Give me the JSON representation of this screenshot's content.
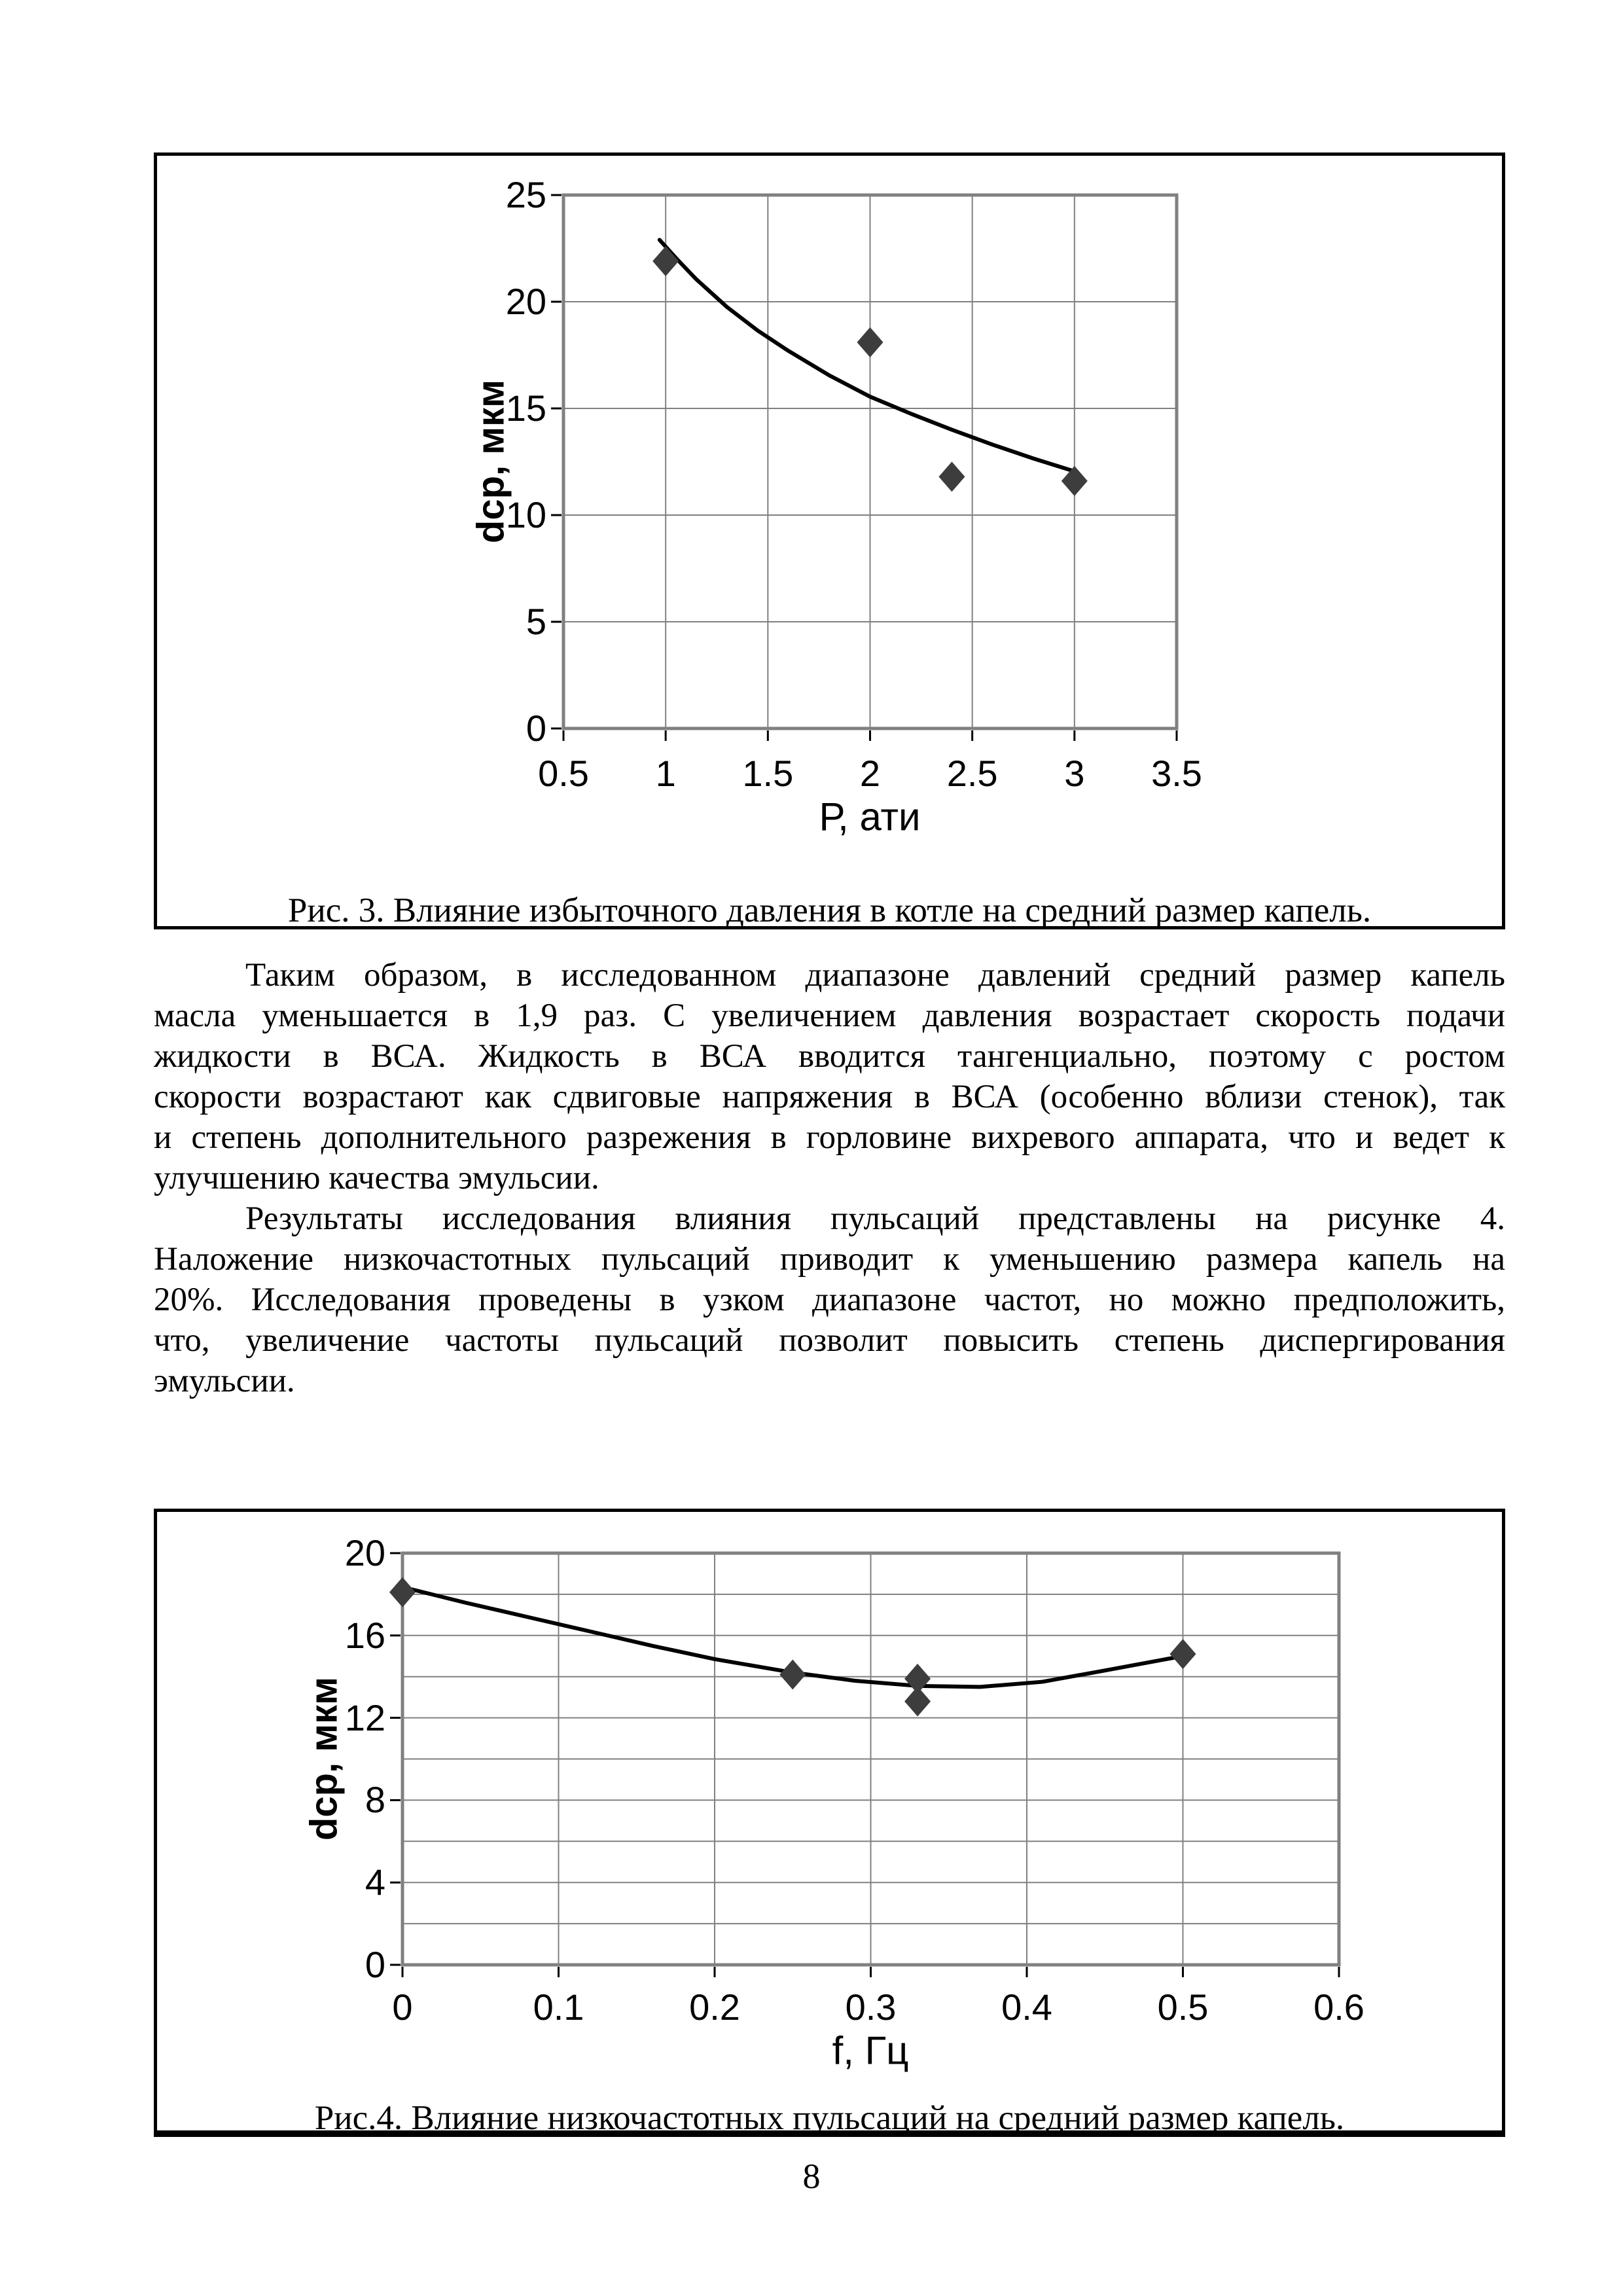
{
  "page": {
    "number": "8"
  },
  "body": {
    "p1": [
      "Таким образом, в исследованном диапазоне давлений средний размер капель",
      "масла уменьшается в 1,9 раз. С увеличением давления возрастает скорость подачи",
      "жидкости в ВСА. Жидкость в ВСА вводится тангенциально, поэтому с ростом",
      "скорости возрастают как сдвиговые напряжения в ВСА (особенно вблизи стенок), так",
      "и степень дополнительного разрежения в горловине вихревого аппарата, что и ведет к",
      "улучшению качества эмульсии."
    ],
    "p2": [
      "Результаты исследования влияния пульсаций представлены на рисунке 4.",
      "Наложение низкочастотных пульсаций приводит к уменьшению размера капель на",
      "20%. Исследования проведены в узком диапазоне частот, но можно предположить,",
      "что, увеличение частоты пульсаций позволит повысить степень диспергирования",
      "эмульсии."
    ]
  },
  "colors": {
    "marker": "#3d3d3d",
    "trend_line": "#000000",
    "gridline": "#808080",
    "plot_border": "#808080",
    "tick_mark": "#000000",
    "figure_border": "#000000"
  },
  "chart_data": [
    {
      "type": "scatter",
      "figure": "Рис. 3",
      "caption": "Рис. 3. Влияние избыточного давления в котле на средний размер капель.",
      "xlabel": "Р, ати",
      "ylabel": "dср, мкм",
      "xlim": [
        0.5,
        3.5
      ],
      "ylim": [
        0,
        25
      ],
      "xticks": [
        0.5,
        1,
        1.5,
        2,
        2.5,
        3,
        3.5
      ],
      "yticks": [
        0,
        5,
        10,
        15,
        20,
        25
      ],
      "x_gridlines": [
        1,
        1.5,
        2,
        2.5,
        3
      ],
      "y_gridlines": [
        5,
        10,
        15,
        20
      ],
      "grid": true,
      "legend": false,
      "points": [
        [
          1,
          21.9
        ],
        [
          2,
          18.1
        ],
        [
          2.4,
          11.8
        ],
        [
          3,
          11.6
        ]
      ],
      "trend": [
        [
          0.97,
          22.9
        ],
        [
          1.05,
          22.05
        ],
        [
          1.15,
          21.05
        ],
        [
          1.3,
          19.75
        ],
        [
          1.45,
          18.65
        ],
        [
          1.6,
          17.7
        ],
        [
          1.8,
          16.55
        ],
        [
          2.0,
          15.55
        ],
        [
          2.2,
          14.75
        ],
        [
          2.4,
          14.0
        ],
        [
          2.6,
          13.3
        ],
        [
          2.8,
          12.65
        ],
        [
          3.0,
          12.05
        ]
      ]
    },
    {
      "type": "scatter",
      "figure": "Рис. 4",
      "caption": "Рис.4. Влияние низкочастотных пульсаций на средний размер капель.",
      "xlabel": "f, Гц",
      "ylabel": "dср, мкм",
      "xlim": [
        0,
        0.6
      ],
      "ylim": [
        0,
        20
      ],
      "xticks": [
        0,
        0.1,
        0.2,
        0.3,
        0.4,
        0.5,
        0.6
      ],
      "yticks": [
        0,
        4,
        8,
        12,
        16,
        20
      ],
      "x_gridlines": [
        0.1,
        0.2,
        0.3,
        0.4,
        0.5
      ],
      "y_gridlines": [
        2,
        4,
        6,
        8,
        10,
        12,
        14,
        16,
        18
      ],
      "grid": true,
      "legend": false,
      "points": [
        [
          0,
          18.1
        ],
        [
          0.25,
          14.1
        ],
        [
          0.33,
          13.9
        ],
        [
          0.33,
          12.8
        ],
        [
          0.5,
          15.1
        ]
      ],
      "trend": [
        [
          0,
          18.35
        ],
        [
          0.04,
          17.6
        ],
        [
          0.08,
          16.9
        ],
        [
          0.12,
          16.2
        ],
        [
          0.16,
          15.5
        ],
        [
          0.2,
          14.85
        ],
        [
          0.25,
          14.2
        ],
        [
          0.29,
          13.8
        ],
        [
          0.33,
          13.55
        ],
        [
          0.37,
          13.5
        ],
        [
          0.41,
          13.75
        ],
        [
          0.45,
          14.3
        ],
        [
          0.5,
          15.0
        ]
      ]
    }
  ]
}
